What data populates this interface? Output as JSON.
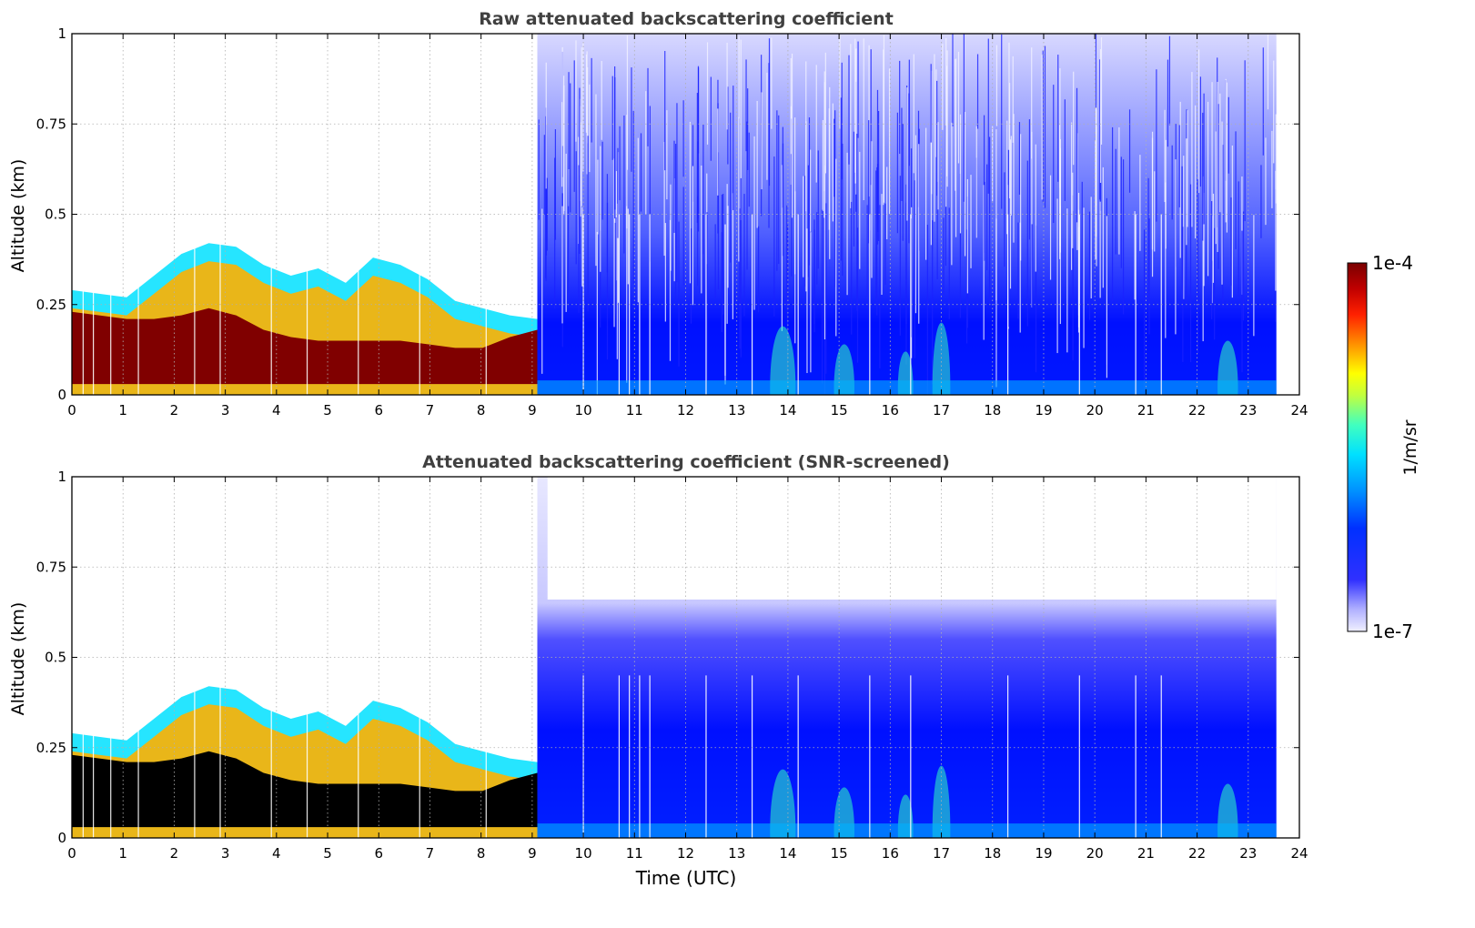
{
  "chart_data": [
    {
      "type": "heatmap",
      "title": "Raw attenuated backscattering coefficient",
      "xlabel": "",
      "ylabel": "Altitude (km)",
      "xlim": [
        0,
        24
      ],
      "ylim": [
        0,
        1
      ],
      "x_ticks": [
        "0",
        "1",
        "2",
        "3",
        "4",
        "5",
        "6",
        "7",
        "8",
        "9",
        "10",
        "11",
        "12",
        "13",
        "14",
        "15",
        "16",
        "17",
        "18",
        "19",
        "20",
        "21",
        "22",
        "23",
        "24"
      ],
      "y_ticks": [
        "0",
        "0.25",
        "0.5",
        "0.75",
        "1"
      ],
      "grid": true,
      "variant": "raw"
    },
    {
      "type": "heatmap",
      "title": "Attenuated backscattering coefficient (SNR-screened)",
      "xlabel": "Time (UTC)",
      "ylabel": "Altitude (km)",
      "xlim": [
        0,
        24
      ],
      "ylim": [
        0,
        1
      ],
      "x_ticks": [
        "0",
        "1",
        "2",
        "3",
        "4",
        "5",
        "6",
        "7",
        "8",
        "9",
        "10",
        "11",
        "12",
        "13",
        "14",
        "15",
        "16",
        "17",
        "18",
        "19",
        "20",
        "21",
        "22",
        "23",
        "24"
      ],
      "y_ticks": [
        "0",
        "0.25",
        "0.5",
        "0.75",
        "1"
      ],
      "grid": true,
      "variant": "screened"
    }
  ],
  "colorbar": {
    "max_label": "1e-4",
    "min_label": "1e-7",
    "unit_label": "1/m/sr",
    "scale": "log",
    "colormap": "jet with light lavender low end",
    "colors": [
      "#eeeeff",
      "#c0c0ff",
      "#5050ff",
      "#0010ff",
      "#0060ff",
      "#00c8ff",
      "#30ffd0",
      "#b0ff50",
      "#ffff00",
      "#ffa000",
      "#ff3000",
      "#c00000",
      "#800000"
    ]
  },
  "highlight_colors": {
    "high_clipped": "#000000",
    "noise": "#0000ff",
    "background": "#ffffff"
  }
}
